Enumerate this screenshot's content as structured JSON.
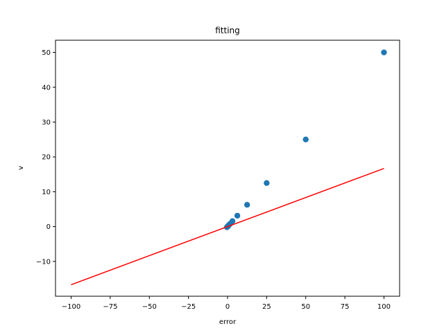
{
  "chart_data": {
    "type": "scatter",
    "title": "fitting",
    "xlabel": "error",
    "ylabel": "v",
    "xlim": [
      -110,
      110
    ],
    "ylim": [
      -20,
      53.5
    ],
    "xticks": [
      -100,
      -75,
      -50,
      -25,
      0,
      25,
      50,
      75,
      100
    ],
    "yticks": [
      -10,
      0,
      10,
      20,
      30,
      40,
      50
    ],
    "grid": false,
    "series": [
      {
        "type": "scatter",
        "color": "#1f77b4",
        "points": [
          [
            100,
            50
          ],
          [
            50,
            25
          ],
          [
            25,
            12.5
          ],
          [
            12.5,
            6.25
          ],
          [
            6.25,
            3.125
          ],
          [
            3.125,
            1.5625
          ],
          [
            1.5625,
            0.78125
          ],
          [
            0.78125,
            0.390625
          ],
          [
            0.390625,
            0.1953125
          ],
          [
            0.1953125,
            0.09765625
          ],
          [
            0,
            0
          ],
          [
            -0.1953125,
            -0.09765625
          ],
          [
            -0.390625,
            -0.1953125
          ]
        ]
      },
      {
        "type": "line",
        "color": "#ff0000",
        "points": [
          [
            -100,
            -16.7
          ],
          [
            100,
            16.7
          ]
        ]
      }
    ]
  }
}
